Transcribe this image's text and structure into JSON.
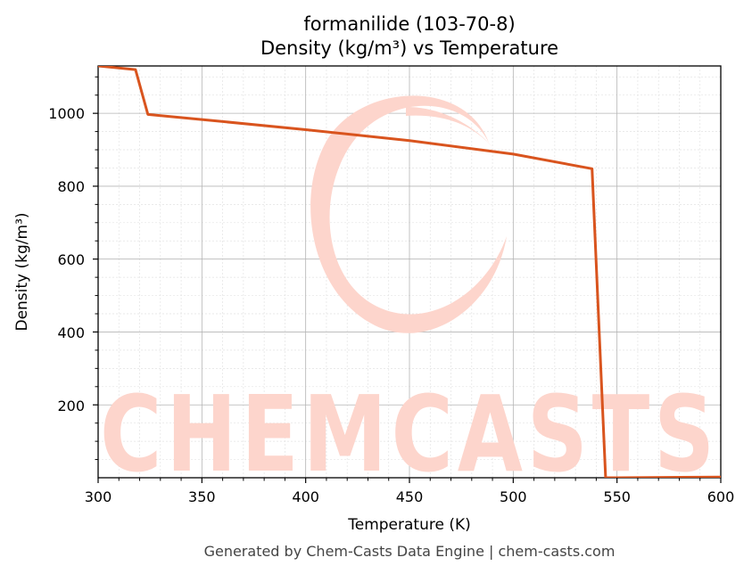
{
  "chart_data": {
    "type": "line",
    "title": "formanilide (103-70-8)",
    "subtitle": "Density (kg/m³) vs Temperature",
    "xlabel": "Temperature (K)",
    "ylabel": "Density (kg/m³)",
    "xlim": [
      300,
      600
    ],
    "ylim": [
      0,
      1130
    ],
    "xticks": [
      300,
      350,
      400,
      450,
      500,
      550,
      600
    ],
    "yticks": [
      200,
      400,
      600,
      800,
      1000
    ],
    "grid": true,
    "line_color": "#d9541e",
    "series": [
      {
        "x": [
          300,
          318,
          324,
          350,
          400,
          450,
          500,
          538,
          544.5,
          550,
          600
        ],
        "y": [
          1130,
          1120,
          997,
          983,
          955,
          925,
          888,
          848,
          0,
          0,
          2
        ]
      }
    ]
  },
  "watermark": {
    "text": "CHEMCASTS",
    "color": "#fdd5cc"
  },
  "footer": "Generated by Chem-Casts Data Engine | chem-casts.com"
}
